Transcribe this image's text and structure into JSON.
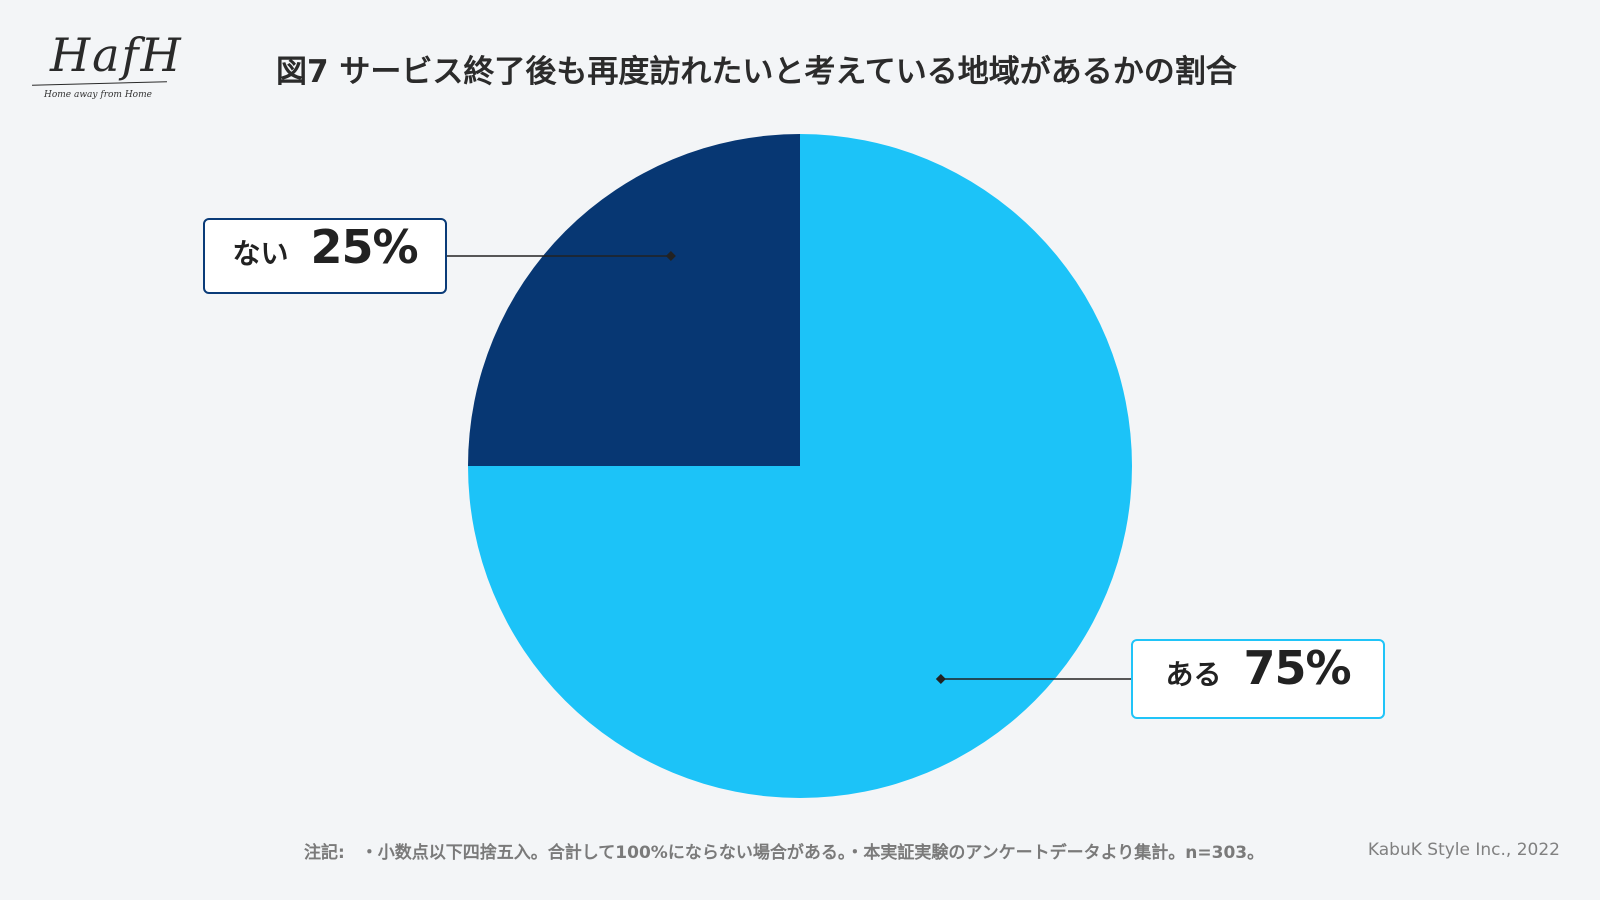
{
  "logo": {
    "wordmark": "HafH",
    "tagline": "Home away from Home"
  },
  "chart_data": {
    "type": "pie",
    "title": "図7 サービス終了後も再度訪れたいと考えている地域があるかの割合",
    "slices": [
      {
        "label": "ある",
        "value": 75,
        "value_label": "75%",
        "color": "#1cc3f8"
      },
      {
        "label": "ない",
        "value": 25,
        "value_label": "25%",
        "color": "#073773"
      }
    ],
    "start_angle_deg": 0,
    "direction": "clockwise",
    "legend": "callouts"
  },
  "footnote": {
    "label": "注記:",
    "text": "・小数点以下四捨五入。合計して100%にならない場合がある。・本実証実験のアンケートデータより集計。n=303。"
  },
  "credit": "KabuK Style Inc., 2022"
}
